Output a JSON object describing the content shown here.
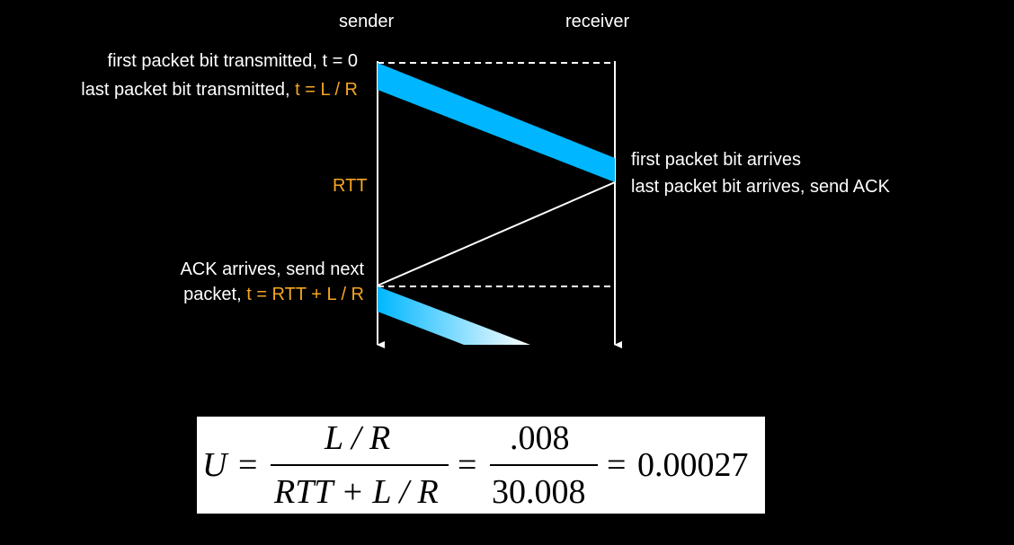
{
  "diagram": {
    "sender_label": "sender",
    "receiver_label": "receiver",
    "rtt_label": "RTT",
    "events_left": {
      "first_bit_text": "first packet bit transmitted, t = 0",
      "last_bit_prefix": "last packet bit transmitted, ",
      "last_bit_time": "t = L / R",
      "ack_line1": "ACK arrives, send next",
      "ack_line2_prefix": "packet, ",
      "ack_line2_time": "t = RTT + L / R"
    },
    "events_right": {
      "first_arrival": "first packet bit arrives",
      "last_arrival": "last packet bit arrives, send ACK"
    },
    "colors": {
      "packet": "#00b7ff",
      "time_highlight": "#f5a623",
      "background": "#000000"
    }
  },
  "formula": {
    "lhs": "U",
    "eq1": "=",
    "frac1_num": "L / R",
    "frac1_den": "RTT + L / R",
    "eq2": "=",
    "frac2_num": ".008",
    "frac2_den": "30.008",
    "eq3": "=",
    "result": "0.00027"
  }
}
